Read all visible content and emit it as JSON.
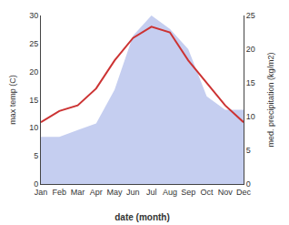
{
  "chart_data": {
    "type": "line",
    "categories": [
      "Jan",
      "Feb",
      "Mar",
      "Apr",
      "May",
      "Jun",
      "Jul",
      "Aug",
      "Sep",
      "Oct",
      "Nov",
      "Dec"
    ],
    "series": [
      {
        "type": "area",
        "color": "#c5cef0",
        "axis": "y2",
        "values": [
          7,
          7,
          8,
          9,
          14,
          22,
          25,
          23,
          20,
          13,
          11,
          11
        ]
      },
      {
        "type": "line",
        "color": "#cc3333",
        "values": [
          11,
          13,
          14,
          17,
          22,
          26,
          28,
          27,
          22,
          18,
          14,
          11
        ]
      }
    ],
    "xlabel": "date (month)",
    "ylabel": "max temp (C)",
    "y2label": "med. precipitation (kg/m2)",
    "ylim": [
      0,
      30
    ],
    "yticks": [
      0,
      5,
      10,
      15,
      20,
      25,
      30
    ],
    "y2lim": [
      0,
      25
    ],
    "y2ticks": [
      0,
      5,
      10,
      15,
      20,
      25
    ],
    "grid": false
  }
}
